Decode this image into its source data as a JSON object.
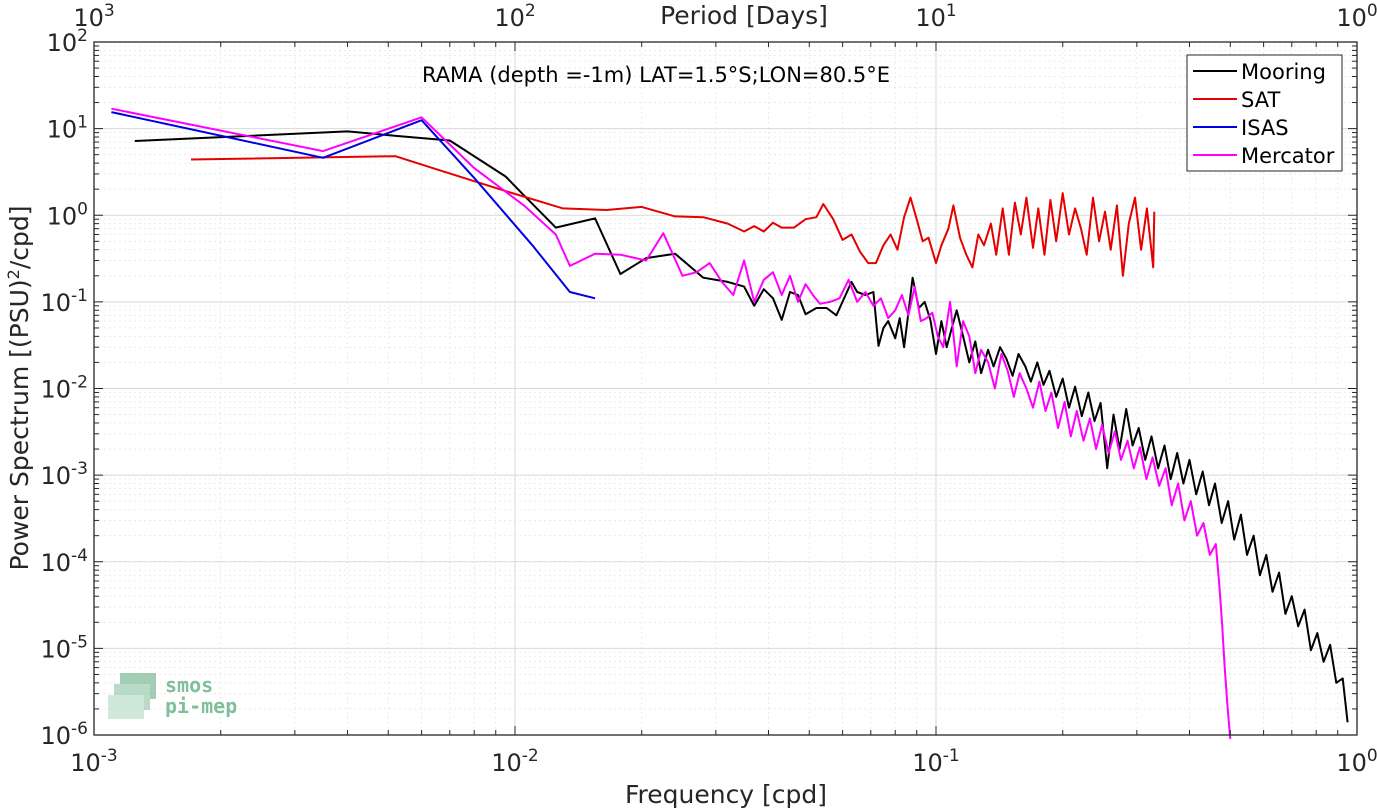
{
  "chart_data": {
    "type": "line",
    "title": "",
    "annotation": "RAMA (depth =-1m) LAT=1.5°S;LON=80.5°E",
    "xlabel": "Frequency [cpd]",
    "x2label": "Period [Days]",
    "ylabel": "Power Spectrum [(PSU)",
    "ylabel_sup": "2",
    "ylabel_tail": "/cpd]",
    "xscale": "log",
    "yscale": "log",
    "xlim": [
      0.001,
      1
    ],
    "ylim": [
      1e-06,
      100
    ],
    "grid": true,
    "legend_position": "top-right",
    "x_ticks": [
      {
        "value": 0.001,
        "base": "10",
        "exp": "-3"
      },
      {
        "value": 0.01,
        "base": "10",
        "exp": "-2"
      },
      {
        "value": 0.1,
        "base": "10",
        "exp": "-1"
      },
      {
        "value": 1,
        "base": "10",
        "exp": "0"
      }
    ],
    "x2_ticks": [
      {
        "value": 0.001,
        "base": "10",
        "exp": "3"
      },
      {
        "value": 0.01,
        "base": "10",
        "exp": "2"
      },
      {
        "value": 0.1,
        "base": "10",
        "exp": "1"
      },
      {
        "value": 1,
        "base": "10",
        "exp": "0"
      }
    ],
    "y_ticks": [
      {
        "value": 100,
        "base": "10",
        "exp": "2"
      },
      {
        "value": 10,
        "base": "10",
        "exp": "1"
      },
      {
        "value": 1,
        "base": "10",
        "exp": "0"
      },
      {
        "value": 0.1,
        "base": "10",
        "exp": "-1"
      },
      {
        "value": 0.01,
        "base": "10",
        "exp": "-2"
      },
      {
        "value": 0.001,
        "base": "10",
        "exp": "-3"
      },
      {
        "value": 0.0001,
        "base": "10",
        "exp": "-4"
      },
      {
        "value": 1e-05,
        "base": "10",
        "exp": "-5"
      },
      {
        "value": 1e-06,
        "base": "10",
        "exp": "-6"
      }
    ],
    "series": [
      {
        "name": "Mooring",
        "color": "#000000",
        "points": [
          [
            0.00125,
            7.2
          ],
          [
            0.004,
            9.3
          ],
          [
            0.0053,
            8.2
          ],
          [
            0.007,
            7.3
          ],
          [
            0.0095,
            2.8
          ],
          [
            0.0105,
            1.7
          ],
          [
            0.0125,
            0.72
          ],
          [
            0.0155,
            0.92
          ],
          [
            0.0178,
            0.21
          ],
          [
            0.0205,
            0.32
          ],
          [
            0.024,
            0.36
          ],
          [
            0.028,
            0.19
          ],
          [
            0.032,
            0.17
          ],
          [
            0.035,
            0.15
          ],
          [
            0.037,
            0.09
          ],
          [
            0.039,
            0.14
          ],
          [
            0.041,
            0.11
          ],
          [
            0.043,
            0.062
          ],
          [
            0.045,
            0.13
          ],
          [
            0.047,
            0.12
          ],
          [
            0.049,
            0.072
          ],
          [
            0.052,
            0.085
          ],
          [
            0.055,
            0.085
          ],
          [
            0.058,
            0.07
          ],
          [
            0.061,
            0.12
          ],
          [
            0.063,
            0.17
          ],
          [
            0.065,
            0.13
          ],
          [
            0.068,
            0.12
          ],
          [
            0.071,
            0.13
          ],
          [
            0.073,
            0.031
          ],
          [
            0.075,
            0.05
          ],
          [
            0.077,
            0.06
          ],
          [
            0.08,
            0.038
          ],
          [
            0.082,
            0.065
          ],
          [
            0.084,
            0.03
          ],
          [
            0.086,
            0.075
          ],
          [
            0.088,
            0.19
          ],
          [
            0.091,
            0.085
          ],
          [
            0.094,
            0.1
          ],
          [
            0.097,
            0.062
          ],
          [
            0.1,
            0.025
          ],
          [
            0.103,
            0.06
          ],
          [
            0.106,
            0.03
          ],
          [
            0.109,
            0.05
          ],
          [
            0.112,
            0.08
          ],
          [
            0.116,
            0.04
          ],
          [
            0.12,
            0.02
          ],
          [
            0.124,
            0.035
          ],
          [
            0.128,
            0.015
          ],
          [
            0.133,
            0.028
          ],
          [
            0.137,
            0.018
          ],
          [
            0.142,
            0.03
          ],
          [
            0.147,
            0.022
          ],
          [
            0.152,
            0.014
          ],
          [
            0.157,
            0.025
          ],
          [
            0.163,
            0.018
          ],
          [
            0.168,
            0.012
          ],
          [
            0.174,
            0.02
          ],
          [
            0.18,
            0.011
          ],
          [
            0.186,
            0.016
          ],
          [
            0.193,
            0.008
          ],
          [
            0.2,
            0.013
          ],
          [
            0.207,
            0.006
          ],
          [
            0.214,
            0.0105
          ],
          [
            0.222,
            0.0048
          ],
          [
            0.23,
            0.009
          ],
          [
            0.238,
            0.0042
          ],
          [
            0.246,
            0.0068
          ],
          [
            0.255,
            0.0012
          ],
          [
            0.264,
            0.005
          ],
          [
            0.273,
            0.002
          ],
          [
            0.283,
            0.0058
          ],
          [
            0.293,
            0.0022
          ],
          [
            0.303,
            0.0035
          ],
          [
            0.314,
            0.0015
          ],
          [
            0.325,
            0.0028
          ],
          [
            0.337,
            0.0012
          ],
          [
            0.349,
            0.0022
          ],
          [
            0.361,
            0.0009
          ],
          [
            0.374,
            0.0018
          ],
          [
            0.387,
            0.0008
          ],
          [
            0.4,
            0.0015
          ],
          [
            0.415,
            0.0006
          ],
          [
            0.43,
            0.0011
          ],
          [
            0.445,
            0.00045
          ],
          [
            0.46,
            0.0008
          ],
          [
            0.477,
            0.00028
          ],
          [
            0.494,
            0.0005
          ],
          [
            0.511,
            0.00018
          ],
          [
            0.53,
            0.00035
          ],
          [
            0.548,
            0.00012
          ],
          [
            0.568,
            0.0002
          ],
          [
            0.588,
            7e-05
          ],
          [
            0.609,
            0.00012
          ],
          [
            0.63,
            4.5e-05
          ],
          [
            0.653,
            7.5e-05
          ],
          [
            0.676,
            2.5e-05
          ],
          [
            0.7,
            4e-05
          ],
          [
            0.725,
            1.8e-05
          ],
          [
            0.751,
            2.8e-05
          ],
          [
            0.777,
            9.5e-06
          ],
          [
            0.805,
            1.5e-05
          ],
          [
            0.833,
            7e-06
          ],
          [
            0.863,
            1.1e-05
          ],
          [
            0.893,
            4e-06
          ],
          [
            0.925,
            4.5e-06
          ],
          [
            0.95,
            1.4e-06
          ]
        ]
      },
      {
        "name": "SAT",
        "color": "#e60000",
        "points": [
          [
            0.0017,
            4.4
          ],
          [
            0.0052,
            4.8
          ],
          [
            0.0065,
            3.4
          ],
          [
            0.0095,
            1.9
          ],
          [
            0.013,
            1.2
          ],
          [
            0.0165,
            1.15
          ],
          [
            0.02,
            1.25
          ],
          [
            0.024,
            0.97
          ],
          [
            0.028,
            0.95
          ],
          [
            0.032,
            0.8
          ],
          [
            0.035,
            0.65
          ],
          [
            0.037,
            0.75
          ],
          [
            0.039,
            0.65
          ],
          [
            0.041,
            0.82
          ],
          [
            0.043,
            0.72
          ],
          [
            0.046,
            0.72
          ],
          [
            0.049,
            0.9
          ],
          [
            0.052,
            0.95
          ],
          [
            0.054,
            1.35
          ],
          [
            0.057,
            0.9
          ],
          [
            0.06,
            0.52
          ],
          [
            0.063,
            0.6
          ],
          [
            0.066,
            0.38
          ],
          [
            0.069,
            0.28
          ],
          [
            0.072,
            0.28
          ],
          [
            0.075,
            0.45
          ],
          [
            0.078,
            0.6
          ],
          [
            0.081,
            0.4
          ],
          [
            0.084,
            0.95
          ],
          [
            0.087,
            1.6
          ],
          [
            0.09,
            0.9
          ],
          [
            0.093,
            0.5
          ],
          [
            0.096,
            0.55
          ],
          [
            0.1,
            0.28
          ],
          [
            0.103,
            0.45
          ],
          [
            0.107,
            0.7
          ],
          [
            0.11,
            1.3
          ],
          [
            0.114,
            0.55
          ],
          [
            0.118,
            0.35
          ],
          [
            0.122,
            0.25
          ],
          [
            0.126,
            0.6
          ],
          [
            0.13,
            0.45
          ],
          [
            0.135,
            0.8
          ],
          [
            0.139,
            0.35
          ],
          [
            0.144,
            1.2
          ],
          [
            0.149,
            0.35
          ],
          [
            0.154,
            1.4
          ],
          [
            0.159,
            0.6
          ],
          [
            0.164,
            1.6
          ],
          [
            0.17,
            0.42
          ],
          [
            0.175,
            1.2
          ],
          [
            0.181,
            0.35
          ],
          [
            0.187,
            1.5
          ],
          [
            0.193,
            0.5
          ],
          [
            0.2,
            1.8
          ],
          [
            0.207,
            0.6
          ],
          [
            0.214,
            1.2
          ],
          [
            0.221,
            0.7
          ],
          [
            0.228,
            0.35
          ],
          [
            0.236,
            1.6
          ],
          [
            0.244,
            0.5
          ],
          [
            0.252,
            1.1
          ],
          [
            0.26,
            0.4
          ],
          [
            0.269,
            1.3
          ],
          [
            0.278,
            0.2
          ],
          [
            0.287,
            0.8
          ],
          [
            0.297,
            1.6
          ],
          [
            0.307,
            0.4
          ],
          [
            0.317,
            1.2
          ],
          [
            0.328,
            0.25
          ],
          [
            0.33,
            1.1
          ]
        ]
      },
      {
        "name": "ISAS",
        "color": "#0000e6",
        "points": [
          [
            0.0011,
            15.5
          ],
          [
            0.0035,
            4.6
          ],
          [
            0.006,
            12.5
          ],
          [
            0.008,
            2.7
          ],
          [
            0.011,
            0.45
          ],
          [
            0.0135,
            0.13
          ],
          [
            0.0155,
            0.11
          ]
        ]
      },
      {
        "name": "Mercator",
        "color": "#ff00ff",
        "points": [
          [
            0.0011,
            17.0
          ],
          [
            0.0035,
            5.5
          ],
          [
            0.006,
            13.5
          ],
          [
            0.008,
            3.5
          ],
          [
            0.0105,
            1.3
          ],
          [
            0.0125,
            0.6
          ],
          [
            0.0135,
            0.26
          ],
          [
            0.0155,
            0.36
          ],
          [
            0.0178,
            0.35
          ],
          [
            0.0205,
            0.3
          ],
          [
            0.0225,
            0.62
          ],
          [
            0.025,
            0.2
          ],
          [
            0.027,
            0.22
          ],
          [
            0.029,
            0.28
          ],
          [
            0.031,
            0.17
          ],
          [
            0.033,
            0.12
          ],
          [
            0.035,
            0.3
          ],
          [
            0.037,
            0.1
          ],
          [
            0.039,
            0.18
          ],
          [
            0.041,
            0.22
          ],
          [
            0.043,
            0.12
          ],
          [
            0.045,
            0.2
          ],
          [
            0.047,
            0.1
          ],
          [
            0.049,
            0.16
          ],
          [
            0.051,
            0.12
          ],
          [
            0.053,
            0.095
          ],
          [
            0.056,
            0.1
          ],
          [
            0.059,
            0.11
          ],
          [
            0.062,
            0.18
          ],
          [
            0.065,
            0.1
          ],
          [
            0.068,
            0.13
          ],
          [
            0.071,
            0.09
          ],
          [
            0.074,
            0.11
          ],
          [
            0.077,
            0.065
          ],
          [
            0.08,
            0.08
          ],
          [
            0.083,
            0.12
          ],
          [
            0.086,
            0.07
          ],
          [
            0.089,
            0.15
          ],
          [
            0.092,
            0.06
          ],
          [
            0.095,
            0.065
          ],
          [
            0.098,
            0.075
          ],
          [
            0.101,
            0.04
          ],
          [
            0.104,
            0.03
          ],
          [
            0.108,
            0.1
          ],
          [
            0.112,
            0.018
          ],
          [
            0.116,
            0.06
          ],
          [
            0.12,
            0.04
          ],
          [
            0.124,
            0.015
          ],
          [
            0.128,
            0.028
          ],
          [
            0.133,
            0.02
          ],
          [
            0.138,
            0.01
          ],
          [
            0.143,
            0.025
          ],
          [
            0.148,
            0.016
          ],
          [
            0.153,
            0.008
          ],
          [
            0.158,
            0.015
          ],
          [
            0.164,
            0.01
          ],
          [
            0.17,
            0.006
          ],
          [
            0.176,
            0.012
          ],
          [
            0.182,
            0.0055
          ],
          [
            0.188,
            0.009
          ],
          [
            0.195,
            0.0035
          ],
          [
            0.202,
            0.007
          ],
          [
            0.209,
            0.0028
          ],
          [
            0.216,
            0.0055
          ],
          [
            0.224,
            0.0025
          ],
          [
            0.232,
            0.0045
          ],
          [
            0.24,
            0.002
          ],
          [
            0.248,
            0.0038
          ],
          [
            0.257,
            0.0018
          ],
          [
            0.266,
            0.0032
          ],
          [
            0.275,
            0.0015
          ],
          [
            0.285,
            0.0025
          ],
          [
            0.295,
            0.0012
          ],
          [
            0.305,
            0.0021
          ],
          [
            0.316,
            0.0009
          ],
          [
            0.327,
            0.0016
          ],
          [
            0.339,
            0.00075
          ],
          [
            0.351,
            0.0012
          ],
          [
            0.363,
            0.00045
          ],
          [
            0.376,
            0.0008
          ],
          [
            0.389,
            0.0003
          ],
          [
            0.403,
            0.0005
          ],
          [
            0.417,
            0.0002
          ],
          [
            0.432,
            0.00028
          ],
          [
            0.447,
            0.00012
          ],
          [
            0.462,
            0.00016
          ],
          [
            0.47,
            6e-05
          ],
          [
            0.478,
            2e-05
          ],
          [
            0.485,
            6e-06
          ],
          [
            0.493,
            2e-06
          ],
          [
            0.5,
            9e-07
          ]
        ]
      }
    ]
  },
  "logo": {
    "line1": "smos",
    "line2": "pi-mep"
  }
}
